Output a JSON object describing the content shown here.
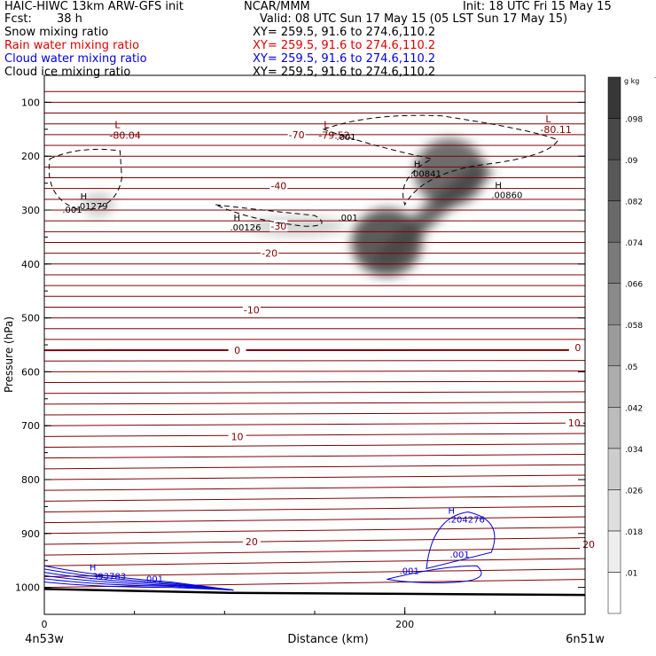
{
  "header": {
    "title": "HAIC-HIWC 13km ARW-GFS init",
    "org": "NCAR/MMM",
    "init": "Init: 18 UTC Fri 15 May 15",
    "fcst_label": "Fcst:",
    "fcst_value": "38 h",
    "valid": "Valid: 08 UTC Sun 17 May 15 (05 LST Sun 17 May 15)",
    "fields": [
      {
        "name": "Snow mixing ratio",
        "xy": "XY= 259.5, 91.6 to 274.6,110.2",
        "color": "#000000"
      },
      {
        "name": "Rain water mixing ratio",
        "xy": "XY= 259.5, 91.6 to 274.6,110.2",
        "color": "#e00000"
      },
      {
        "name": "Cloud water mixing ratio",
        "xy": "XY= 259.5, 91.6 to 274.6,110.2",
        "color": "#0000e0"
      },
      {
        "name": "Cloud ice mixing ratio",
        "xy": "XY= 259.5, 91.6 to 274.6,110.2",
        "color": "#000000"
      }
    ]
  },
  "chart_data": {
    "type": "heatmap",
    "title": "Snow mixing ratio",
    "xlabel": "Distance (km)",
    "ylabel": "Pressure (hPa)",
    "xlim": [
      0,
      300
    ],
    "ylim": [
      1050,
      50
    ],
    "x_ticks": [
      0,
      200
    ],
    "y_ticks": [
      100,
      200,
      300,
      400,
      500,
      600,
      700,
      800,
      900,
      1000
    ],
    "x_endpoint_labels": [
      "4n53w",
      "6n51w"
    ],
    "colorbar": {
      "unit": "g kg",
      "unit_exp": "-1",
      "ticks": [
        ".01",
        ".018",
        ".026",
        ".034",
        ".042",
        ".05",
        ".058",
        ".066",
        ".074",
        ".082",
        ".09",
        ".098"
      ]
    },
    "snow_maxima": [
      {
        "label": "H",
        "value": ".01279",
        "x": 20,
        "p": 280
      },
      {
        "label": "H",
        "value": ".00126",
        "x": 105,
        "p": 320
      },
      {
        "label": "H",
        "value": ".00841",
        "x": 205,
        "p": 220
      },
      {
        "label": "H",
        "value": ".00860",
        "x": 250,
        "p": 260
      }
    ],
    "snow_cores": [
      {
        "x": 190,
        "p": 360,
        "max": 0.1
      },
      {
        "x": 225,
        "p": 230,
        "max": 0.09
      },
      {
        "x": 30,
        "p": 290,
        "max": 0.03
      }
    ],
    "temperature_contours": [
      {
        "value": -70,
        "label": "-70",
        "x": 140,
        "p": 160
      },
      {
        "value": -40,
        "label": "-40",
        "x": 130,
        "p": 255
      },
      {
        "value": -30,
        "label": "-30",
        "x": 130,
        "p": 330
      },
      {
        "value": -20,
        "label": "-20",
        "x": 125,
        "p": 380
      },
      {
        "value": -10,
        "label": "-10",
        "x": 115,
        "p": 485
      },
      {
        "value": 0,
        "label": "0",
        "x": 107,
        "p": 560
      },
      {
        "value": 0,
        "label": "0",
        "x": 296,
        "p": 555
      },
      {
        "value": 10,
        "label": "10",
        "x": 107,
        "p": 720
      },
      {
        "value": 10,
        "label": "10",
        "x": 294,
        "p": 695
      },
      {
        "value": 20,
        "label": "20",
        "x": 115,
        "p": 915
      },
      {
        "value": 20,
        "label": "20",
        "x": 302,
        "p": 920
      }
    ],
    "temperature_minima": [
      {
        "label": "L",
        "value": "-80.04",
        "x": 43,
        "p": 90
      },
      {
        "label": "L",
        "value": "-79.52",
        "x": 159,
        "p": 90
      },
      {
        "label": "L",
        "value": "-80.11",
        "x": 282,
        "p": 80
      }
    ],
    "cloud_water_labels": [
      {
        "label": "H",
        "value": ".204276",
        "x": 224,
        "p": 880
      },
      {
        "label": "",
        "value": ".001",
        "x": 225,
        "p": 945
      },
      {
        "label": "",
        "value": ".001",
        "x": 197,
        "p": 975
      },
      {
        "label": "H",
        "value": ".393783",
        "x": 25,
        "p": 985
      },
      {
        "label": "",
        "value": ".001",
        "x": 55,
        "p": 990
      }
    ],
    "cloud_ice_labels": [
      {
        "value": ".001",
        "x": 10,
        "p": 305
      },
      {
        "value": ".001",
        "x": 163,
        "p": 320
      },
      {
        "value": ".001",
        "x": 162,
        "p": 170
      }
    ],
    "colors": {
      "temperature": "#800000",
      "cloud_water": "#0000e0",
      "cloud_ice": "#000000",
      "terrain": "#000000"
    }
  }
}
